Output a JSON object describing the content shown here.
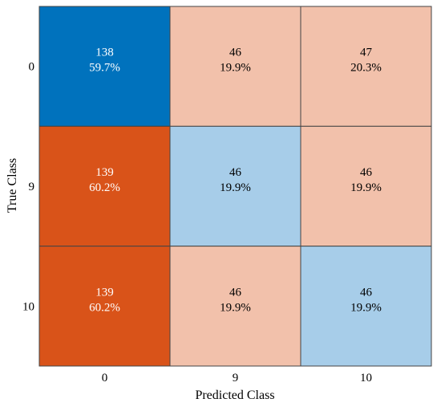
{
  "chart_data": {
    "type": "heatmap",
    "title": "",
    "xlabel": "Predicted Class",
    "ylabel": "True Class",
    "x_categories": [
      "0",
      "9",
      "10"
    ],
    "y_categories": [
      "0",
      "9",
      "10"
    ],
    "cells": [
      [
        {
          "count": "138",
          "percent": "59.7%"
        },
        {
          "count": "46",
          "percent": "19.9%"
        },
        {
          "count": "47",
          "percent": "20.3%"
        }
      ],
      [
        {
          "count": "139",
          "percent": "60.2%"
        },
        {
          "count": "46",
          "percent": "19.9%"
        },
        {
          "count": "46",
          "percent": "19.9%"
        }
      ],
      [
        {
          "count": "139",
          "percent": "60.2%"
        },
        {
          "count": "46",
          "percent": "19.9%"
        },
        {
          "count": "46",
          "percent": "19.9%"
        }
      ]
    ],
    "colors": {
      "diag_strong": "#0072bd",
      "diag_light": "#a7cde9",
      "off_strong": "#d95319",
      "off_light": "#f2c1ab",
      "grid_line": "#444444",
      "text_dark": "#000000",
      "text_light": "#ffffff"
    },
    "fill_levels": [
      [
        "diag_strong",
        "off_light",
        "off_light"
      ],
      [
        "off_strong",
        "diag_light",
        "off_light"
      ],
      [
        "off_strong",
        "off_light",
        "diag_light"
      ]
    ]
  }
}
